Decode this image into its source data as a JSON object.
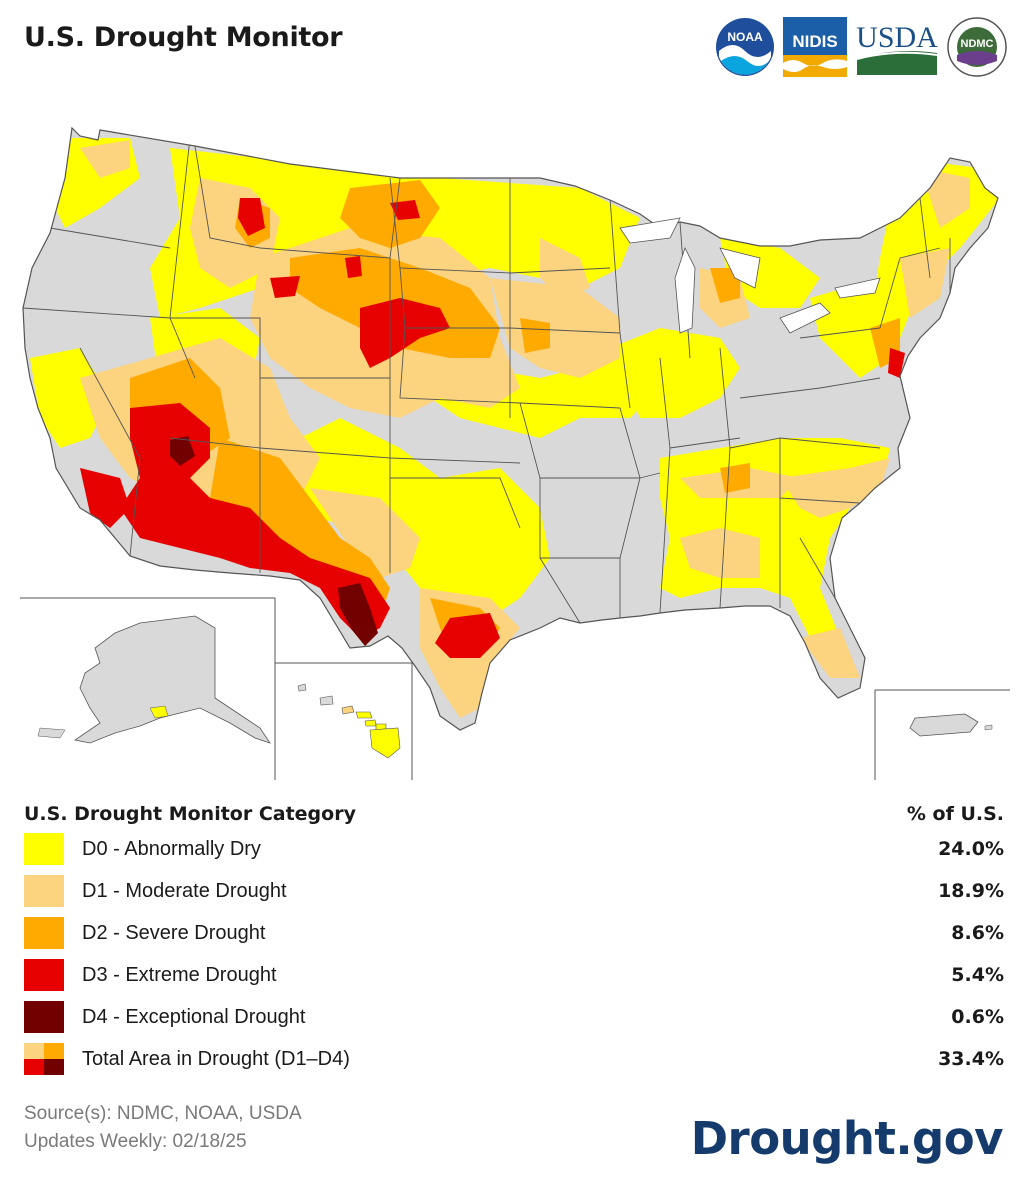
{
  "header": {
    "title": "U.S. Drought Monitor",
    "logos": [
      {
        "name": "noaa-logo",
        "text": "NOAA"
      },
      {
        "name": "nidis-logo",
        "text": "NIDIS"
      },
      {
        "name": "usda-logo",
        "text": "USDA"
      },
      {
        "name": "ndmc-logo",
        "text": "NDMC"
      }
    ]
  },
  "map": {
    "colors": {
      "none": "#d9d9d9",
      "d0": "#ffff00",
      "d1": "#fcd37f",
      "d2": "#ffaa00",
      "d3": "#e60000",
      "d4": "#730000",
      "border": "#555555"
    },
    "insets": [
      "Alaska",
      "Hawaii",
      "Puerto Rico"
    ]
  },
  "legend": {
    "heading": "U.S. Drought Monitor Category",
    "pct_heading": "% of U.S.",
    "categories": [
      {
        "label": "D0 - Abnormally Dry",
        "pct": "24.0%",
        "color": "#ffff00"
      },
      {
        "label": "D1 - Moderate Drought",
        "pct": "18.9%",
        "color": "#fcd37f"
      },
      {
        "label": "D2 - Severe Drought",
        "pct": "8.6%",
        "color": "#ffaa00"
      },
      {
        "label": "D3 - Extreme Drought",
        "pct": "5.4%",
        "color": "#e60000"
      },
      {
        "label": "D4 - Exceptional Drought",
        "pct": "0.6%",
        "color": "#730000"
      }
    ],
    "total": {
      "label": "Total Area in Drought (D1–D4)",
      "pct": "33.4%"
    }
  },
  "footer": {
    "source": "Source(s): NDMC, NOAA, USDA",
    "updates": "Updates Weekly: 02/18/25",
    "brand": "Drought.gov"
  }
}
